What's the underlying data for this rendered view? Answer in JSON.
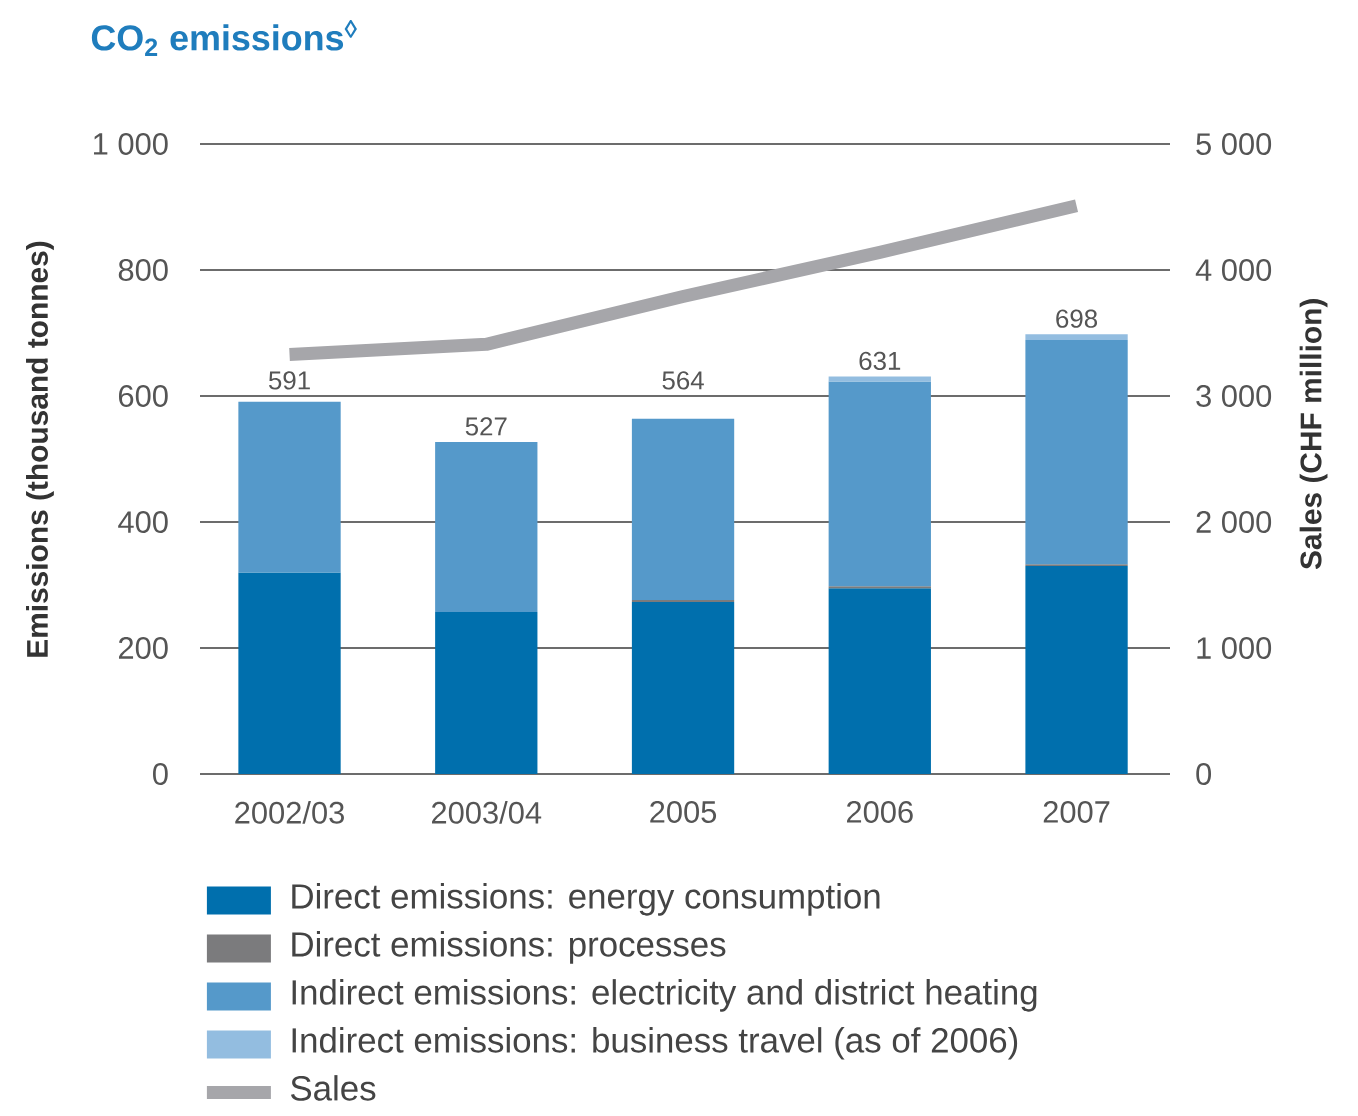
{
  "chart_data": {
    "type": "bar",
    "title": "CO$_{2}$ emissions$^{◊}$",
    "ylabel": "Emissions (thousand tonnes)",
    "y2label": "Sales (CHF million)",
    "categories": [
      "2002/03",
      "2003/04",
      "2005",
      "2006",
      "2007"
    ],
    "series": [
      {
        "name": "Direct emissions: energy consumption",
        "color": "#006fad",
        "values": [
          320,
          257,
          273,
          295,
          330
        ]
      },
      {
        "name": "Direct emissions: processes",
        "color": "#7b7b7d",
        "values": [
          null,
          null,
          3,
          3,
          3
        ]
      },
      {
        "name": "Indirect emissions: electricity and district heating",
        "color": "#5599ca",
        "values": [
          271,
          270,
          288,
          325,
          356
        ]
      },
      {
        "name": "Indirect emissions: business travel (as of 2006)",
        "color": "#93bde0",
        "values": [
          null,
          null,
          null,
          8,
          9
        ]
      },
      {
        "name": "Sales",
        "type": "line",
        "axis": "y2",
        "color": "#a6a6aa",
        "values": [
          3330,
          3410,
          3790,
          4140,
          4510
        ]
      }
    ],
    "stacked": true,
    "totals": [
      "591",
      "527",
      "564",
      "631",
      "698"
    ],
    "ylim": [
      0,
      1000
    ],
    "yticks": [
      0,
      200,
      400,
      600,
      800,
      {
        "value": 1000,
        "label": "1 000"
      }
    ],
    "y2lim": [
      0,
      5000
    ],
    "y2ticks": [
      0,
      {
        "value": 1000,
        "label": "1 000"
      },
      {
        "value": 2000,
        "label": "2 000"
      },
      {
        "value": 3000,
        "label": "3 000"
      },
      {
        "value": 4000,
        "label": "4 000"
      },
      {
        "value": 5000,
        "label": "5 000"
      }
    ],
    "grid": "y",
    "legend": "bottom"
  }
}
